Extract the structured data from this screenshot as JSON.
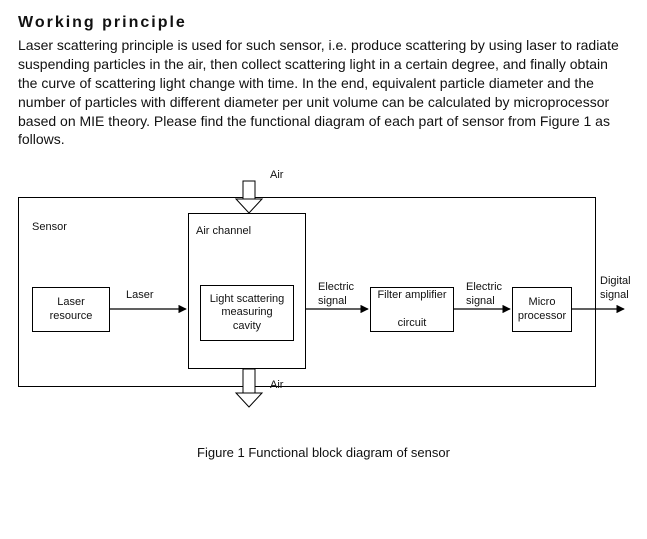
{
  "heading": "Working principle",
  "paragraph": "Laser scattering principle is used for such sensor, i.e. produce scattering by using laser to radiate suspending particles in the air, then collect scattering light in a certain degree, and finally obtain the curve of scattering light change with time. In the end, equivalent particle diameter and the number of particles with different diameter per unit volume can be calculated by microprocessor based on MIE theory. Please find the functional diagram of each part of sensor from Figure 1 as follows.",
  "diagram": {
    "type": "flowchart",
    "caption": "Figure 1 Functional block diagram of sensor",
    "stroke_color": "#000000",
    "background_color": "#ffffff",
    "font_family": "Arial",
    "label_fontsize": 11,
    "container": {
      "label": "Sensor"
    },
    "blocks": {
      "laser_resource": {
        "label": "Laser\nresource"
      },
      "air_channel": {
        "label": "Air channel"
      },
      "scatter_cavity": {
        "label": "Light scattering\nmeasuring\ncavity"
      },
      "filter_amp": {
        "label": "Filter amplifier\n\ncircuit"
      },
      "microprocessor": {
        "label": "Micro\nprocessor"
      }
    },
    "edges": {
      "laser": {
        "label": "Laser"
      },
      "elec1": {
        "label": "Electric\nsignal"
      },
      "elec2": {
        "label": "Electric\nsignal"
      },
      "digital": {
        "label": "Digital\nsignal"
      },
      "air_in": {
        "label": "Air"
      },
      "air_out": {
        "label": "Air"
      }
    }
  }
}
